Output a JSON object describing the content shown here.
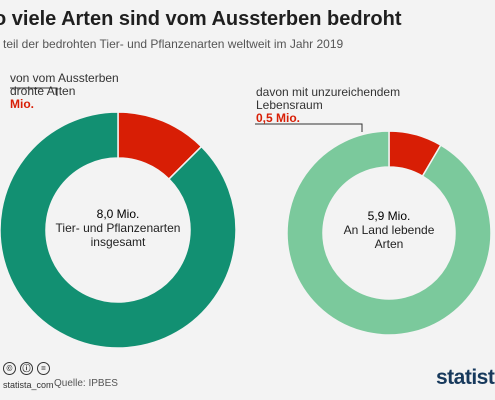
{
  "header": {
    "title": "o viele Arten sind vom Aussterben bedroht",
    "subtitle": "teil der bedrohten Tier- und Pflanzenarten weltweit im Jahr 2019"
  },
  "chart_data": [
    {
      "type": "pie",
      "total_label": "8,0 Mio.",
      "center_lines": [
        "Tier- und Pflanzenarten",
        "insgesamt"
      ],
      "annotation_lines": [
        "von vom Aussterben",
        "drohte Arten"
      ],
      "highlight_label": "Mio.",
      "slices": [
        {
          "value": 1.0,
          "color": "#d81e05"
        },
        {
          "value": 7.0,
          "color": "#129072"
        }
      ]
    },
    {
      "type": "pie",
      "total_label": "5,9 Mio.",
      "center_lines": [
        "An Land lebende",
        "Arten"
      ],
      "annotation_lines": [
        "davon mit unzureichendem",
        "Lebensraum"
      ],
      "highlight_label": "0,5 Mio.",
      "slices": [
        {
          "value": 0.5,
          "color": "#d81e05"
        },
        {
          "value": 5.4,
          "color": "#7bc99c"
        }
      ]
    }
  ],
  "footer": {
    "license_icons": [
      "©",
      "ⓘ",
      "="
    ],
    "handle": "statista_com",
    "source": "Quelle: IPBES",
    "logo": "statista"
  },
  "colors": {
    "highlight": "#d81e05",
    "donut_left": "#129072",
    "donut_right": "#7bc99c",
    "background": "#f3f3f3",
    "logo": "#17395c"
  }
}
